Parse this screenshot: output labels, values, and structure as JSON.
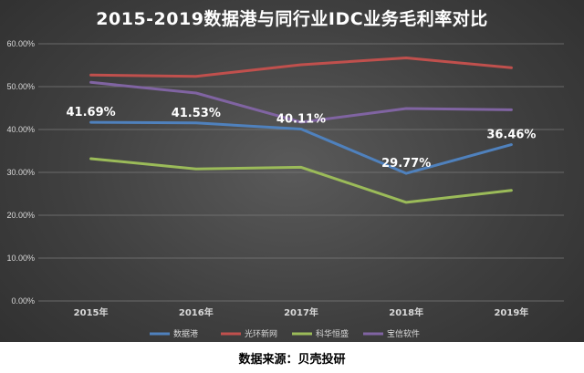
{
  "chart_data": {
    "type": "line",
    "title": "2015-2019数据港与同行业IDC业务毛利率对比",
    "categories": [
      "2015年",
      "2016年",
      "2017年",
      "2018年",
      "2019年"
    ],
    "y_ticks": [
      "0.00%",
      "10.00%",
      "20.00%",
      "30.00%",
      "40.00%",
      "50.00%",
      "60.00%"
    ],
    "ylim": [
      0,
      60
    ],
    "grid": true,
    "legend_position": "bottom",
    "series": [
      {
        "name": "数据港",
        "color": "#4f81bd",
        "values": [
          41.69,
          41.53,
          40.11,
          29.77,
          36.46
        ],
        "data_labels": [
          "41.69%",
          "41.53%",
          "40.11%",
          "29.77%",
          "36.46%"
        ]
      },
      {
        "name": "光环新网",
        "color": "#c0504d",
        "values": [
          52.7,
          52.4,
          55.1,
          56.7,
          54.4
        ]
      },
      {
        "name": "科华恒盛",
        "color": "#9bbb59",
        "values": [
          33.2,
          30.8,
          31.2,
          23.0,
          25.8
        ]
      },
      {
        "name": "宝信软件",
        "color": "#8064a2",
        "values": [
          51.0,
          48.5,
          41.7,
          44.9,
          44.6
        ]
      }
    ]
  },
  "footer": {
    "source": "数据来源：贝壳投研"
  }
}
